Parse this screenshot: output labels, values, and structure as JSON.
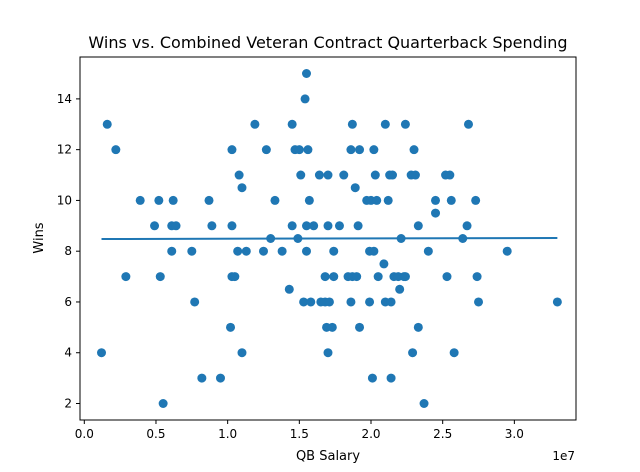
{
  "chart_data": {
    "type": "scatter",
    "title": "Wins vs. Combined Veteran Contract Quarterback Spending",
    "xlabel": "QB Salary",
    "ylabel": "Wins",
    "x_offset_label": "1e7",
    "xlim": [
      -300000,
      34300000
    ],
    "ylim": [
      1.35,
      15.65
    ],
    "x_ticks": [
      0,
      5000000,
      10000000,
      15000000,
      20000000,
      25000000,
      30000000
    ],
    "x_tick_labels": [
      "0.0",
      "0.5",
      "1.0",
      "1.5",
      "2.0",
      "2.5",
      "3.0"
    ],
    "y_ticks": [
      2,
      4,
      6,
      8,
      10,
      12,
      14
    ],
    "y_tick_labels": [
      "2",
      "4",
      "6",
      "8",
      "10",
      "12",
      "14"
    ],
    "grid": false,
    "colors": {
      "points": "#1f77b4",
      "fit_line": "#1f77b4"
    },
    "fit_line": {
      "x": [
        1200000,
        33000000
      ],
      "y": [
        8.48,
        8.52
      ]
    },
    "points": [
      {
        "x": 1200000,
        "y": 4
      },
      {
        "x": 1600000,
        "y": 13
      },
      {
        "x": 2200000,
        "y": 12
      },
      {
        "x": 2900000,
        "y": 7
      },
      {
        "x": 3900000,
        "y": 10
      },
      {
        "x": 4900000,
        "y": 9
      },
      {
        "x": 5200000,
        "y": 10
      },
      {
        "x": 5300000,
        "y": 7
      },
      {
        "x": 5500000,
        "y": 2
      },
      {
        "x": 6100000,
        "y": 8
      },
      {
        "x": 6100000,
        "y": 9
      },
      {
        "x": 6200000,
        "y": 10
      },
      {
        "x": 6400000,
        "y": 9
      },
      {
        "x": 7500000,
        "y": 8
      },
      {
        "x": 7700000,
        "y": 6
      },
      {
        "x": 8200000,
        "y": 3
      },
      {
        "x": 8700000,
        "y": 10
      },
      {
        "x": 8900000,
        "y": 9
      },
      {
        "x": 9500000,
        "y": 3
      },
      {
        "x": 10200000,
        "y": 5
      },
      {
        "x": 10300000,
        "y": 12
      },
      {
        "x": 10300000,
        "y": 9
      },
      {
        "x": 10300000,
        "y": 7
      },
      {
        "x": 10500000,
        "y": 7
      },
      {
        "x": 10700000,
        "y": 8
      },
      {
        "x": 10800000,
        "y": 11
      },
      {
        "x": 11000000,
        "y": 4
      },
      {
        "x": 11000000,
        "y": 10.5
      },
      {
        "x": 11300000,
        "y": 8
      },
      {
        "x": 11900000,
        "y": 13
      },
      {
        "x": 12500000,
        "y": 8
      },
      {
        "x": 12700000,
        "y": 12
      },
      {
        "x": 13000000,
        "y": 8.5
      },
      {
        "x": 13300000,
        "y": 10
      },
      {
        "x": 13800000,
        "y": 8
      },
      {
        "x": 14300000,
        "y": 6.5
      },
      {
        "x": 14500000,
        "y": 9
      },
      {
        "x": 14500000,
        "y": 13
      },
      {
        "x": 14700000,
        "y": 12
      },
      {
        "x": 14900000,
        "y": 8.5
      },
      {
        "x": 15000000,
        "y": 12
      },
      {
        "x": 15100000,
        "y": 11
      },
      {
        "x": 15300000,
        "y": 6
      },
      {
        "x": 15400000,
        "y": 14
      },
      {
        "x": 15500000,
        "y": 15
      },
      {
        "x": 15500000,
        "y": 9
      },
      {
        "x": 15500000,
        "y": 8
      },
      {
        "x": 15600000,
        "y": 12
      },
      {
        "x": 15700000,
        "y": 10
      },
      {
        "x": 15800000,
        "y": 6
      },
      {
        "x": 16000000,
        "y": 9
      },
      {
        "x": 16400000,
        "y": 11
      },
      {
        "x": 16500000,
        "y": 6
      },
      {
        "x": 16800000,
        "y": 7
      },
      {
        "x": 16800000,
        "y": 6
      },
      {
        "x": 16900000,
        "y": 5
      },
      {
        "x": 17000000,
        "y": 4
      },
      {
        "x": 17000000,
        "y": 9
      },
      {
        "x": 17000000,
        "y": 11
      },
      {
        "x": 17100000,
        "y": 6
      },
      {
        "x": 17300000,
        "y": 5
      },
      {
        "x": 17400000,
        "y": 8
      },
      {
        "x": 17400000,
        "y": 7
      },
      {
        "x": 17800000,
        "y": 9
      },
      {
        "x": 18100000,
        "y": 11
      },
      {
        "x": 18400000,
        "y": 7
      },
      {
        "x": 18600000,
        "y": 6
      },
      {
        "x": 18600000,
        "y": 12
      },
      {
        "x": 18700000,
        "y": 13
      },
      {
        "x": 18700000,
        "y": 7
      },
      {
        "x": 18900000,
        "y": 10.5
      },
      {
        "x": 19000000,
        "y": 7
      },
      {
        "x": 19100000,
        "y": 9
      },
      {
        "x": 19200000,
        "y": 5
      },
      {
        "x": 19200000,
        "y": 12
      },
      {
        "x": 19700000,
        "y": 10
      },
      {
        "x": 19900000,
        "y": 8
      },
      {
        "x": 19900000,
        "y": 6
      },
      {
        "x": 20000000,
        "y": 10
      },
      {
        "x": 20100000,
        "y": 3
      },
      {
        "x": 20200000,
        "y": 8
      },
      {
        "x": 20200000,
        "y": 12
      },
      {
        "x": 20300000,
        "y": 11
      },
      {
        "x": 20400000,
        "y": 10
      },
      {
        "x": 20500000,
        "y": 7
      },
      {
        "x": 20900000,
        "y": 7.5
      },
      {
        "x": 21000000,
        "y": 6
      },
      {
        "x": 21000000,
        "y": 13
      },
      {
        "x": 21200000,
        "y": 10
      },
      {
        "x": 21300000,
        "y": 11
      },
      {
        "x": 21400000,
        "y": 3
      },
      {
        "x": 21400000,
        "y": 6
      },
      {
        "x": 21500000,
        "y": 11
      },
      {
        "x": 21600000,
        "y": 7
      },
      {
        "x": 21900000,
        "y": 7
      },
      {
        "x": 22000000,
        "y": 6.5
      },
      {
        "x": 22100000,
        "y": 8.5
      },
      {
        "x": 22300000,
        "y": 7
      },
      {
        "x": 22400000,
        "y": 7
      },
      {
        "x": 22400000,
        "y": 13
      },
      {
        "x": 22800000,
        "y": 11
      },
      {
        "x": 22900000,
        "y": 4
      },
      {
        "x": 23000000,
        "y": 12
      },
      {
        "x": 23100000,
        "y": 11
      },
      {
        "x": 23300000,
        "y": 9
      },
      {
        "x": 23300000,
        "y": 5
      },
      {
        "x": 23700000,
        "y": 2
      },
      {
        "x": 24000000,
        "y": 8
      },
      {
        "x": 24500000,
        "y": 9.5
      },
      {
        "x": 24500000,
        "y": 10
      },
      {
        "x": 25200000,
        "y": 11
      },
      {
        "x": 25300000,
        "y": 7
      },
      {
        "x": 25500000,
        "y": 11
      },
      {
        "x": 25600000,
        "y": 10
      },
      {
        "x": 25800000,
        "y": 4
      },
      {
        "x": 26400000,
        "y": 8.5
      },
      {
        "x": 26700000,
        "y": 9
      },
      {
        "x": 26800000,
        "y": 13
      },
      {
        "x": 27300000,
        "y": 10
      },
      {
        "x": 27400000,
        "y": 7
      },
      {
        "x": 27500000,
        "y": 6
      },
      {
        "x": 29500000,
        "y": 8
      },
      {
        "x": 33000000,
        "y": 6
      }
    ]
  }
}
